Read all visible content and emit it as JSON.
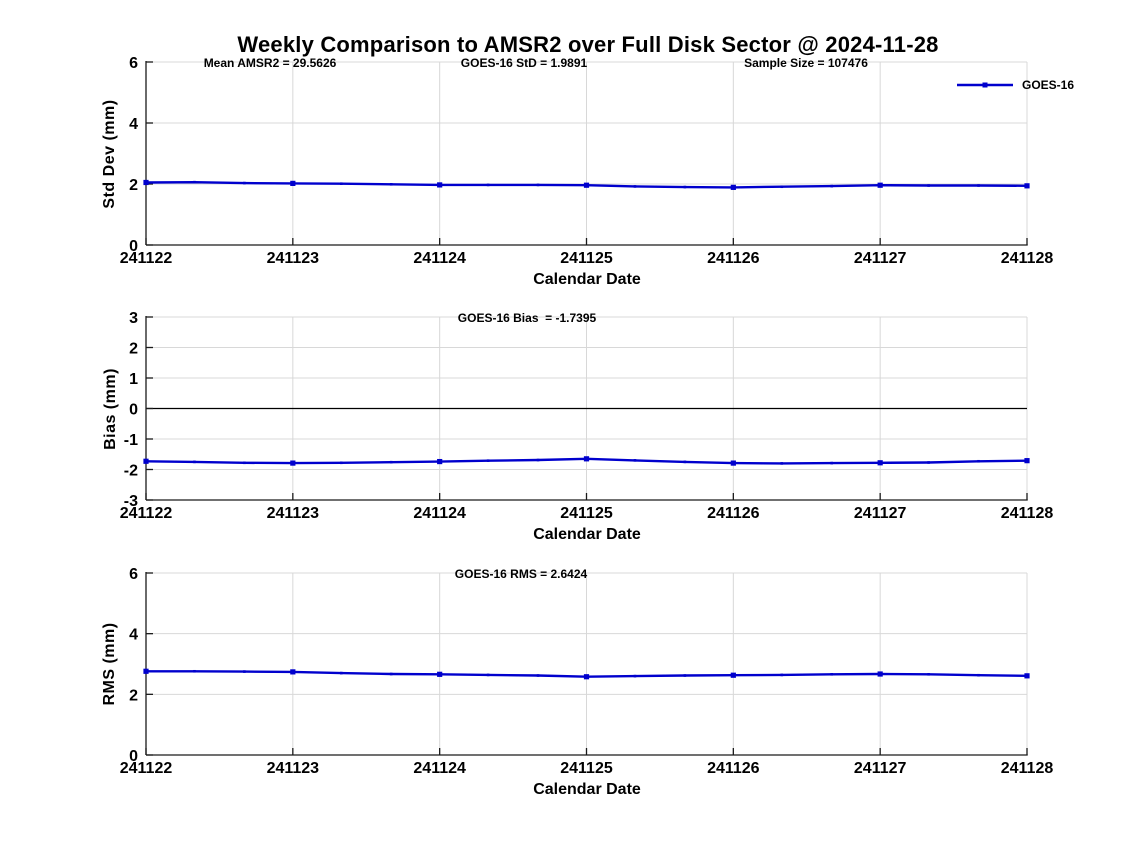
{
  "title": "Weekly Comparison to AMSR2 over Full Disk Sector @ 2024-11-28",
  "legend": {
    "label": "GOES-16"
  },
  "colors": {
    "line": "#0000CD",
    "grid": "#D8D8D8",
    "axis": "#1A1A1A",
    "zero_line": "#000000",
    "text": "#000000"
  },
  "xlabel": "Calendar Date",
  "xticks": [
    "241122",
    "241123",
    "241124",
    "241125",
    "241126",
    "241127",
    "241128"
  ],
  "chart_data": [
    {
      "type": "line",
      "name": "std-dev",
      "ylabel": "Std Dev (mm)",
      "xlabel": "Calendar Date",
      "ylim": [
        0,
        6
      ],
      "yticks": [
        0,
        2,
        4,
        6
      ],
      "grid": true,
      "annotations": [
        "Mean AMSR2 = 29.5626",
        "GOES-16 StD = 1.9891",
        "Sample Size = 107476"
      ],
      "series": [
        {
          "name": "GOES-16",
          "x": [
            0,
            0.33,
            0.67,
            1,
            1.33,
            1.67,
            2,
            2.33,
            2.67,
            3,
            3.33,
            3.67,
            4,
            4.33,
            4.67,
            5,
            5.33,
            5.67,
            6
          ],
          "y": [
            2.05,
            2.06,
            2.03,
            2.02,
            2.01,
            1.99,
            1.97,
            1.97,
            1.97,
            1.96,
            1.92,
            1.9,
            1.89,
            1.91,
            1.93,
            1.96,
            1.95,
            1.95,
            1.94
          ]
        }
      ]
    },
    {
      "type": "line",
      "name": "bias",
      "ylabel": "Bias (mm)",
      "xlabel": "Calendar Date",
      "ylim": [
        -3,
        3
      ],
      "yticks": [
        -3,
        -2,
        -1,
        0,
        1,
        2,
        3
      ],
      "grid": true,
      "zero_line": true,
      "annotations": [
        "GOES-16 Bias  = -1.7395"
      ],
      "series": [
        {
          "name": "GOES-16",
          "x": [
            0,
            0.33,
            0.67,
            1,
            1.33,
            1.67,
            2,
            2.33,
            2.67,
            3,
            3.33,
            3.67,
            4,
            4.33,
            4.67,
            5,
            5.33,
            5.67,
            6
          ],
          "y": [
            -1.73,
            -1.75,
            -1.78,
            -1.79,
            -1.78,
            -1.76,
            -1.74,
            -1.71,
            -1.69,
            -1.65,
            -1.7,
            -1.75,
            -1.79,
            -1.8,
            -1.79,
            -1.78,
            -1.77,
            -1.73,
            -1.71
          ]
        }
      ]
    },
    {
      "type": "line",
      "name": "rms",
      "ylabel": "RMS (mm)",
      "xlabel": "Calendar Date",
      "ylim": [
        0,
        6
      ],
      "yticks": [
        0,
        2,
        4,
        6
      ],
      "grid": true,
      "annotations": [
        "GOES-16 RMS = 2.6424"
      ],
      "series": [
        {
          "name": "GOES-16",
          "x": [
            0,
            0.33,
            0.67,
            1,
            1.33,
            1.67,
            2,
            2.33,
            2.67,
            3,
            3.33,
            3.67,
            4,
            4.33,
            4.67,
            5,
            5.33,
            5.67,
            6
          ],
          "y": [
            2.76,
            2.76,
            2.75,
            2.74,
            2.7,
            2.67,
            2.66,
            2.64,
            2.62,
            2.58,
            2.6,
            2.62,
            2.63,
            2.64,
            2.66,
            2.67,
            2.66,
            2.63,
            2.61
          ]
        }
      ]
    }
  ]
}
